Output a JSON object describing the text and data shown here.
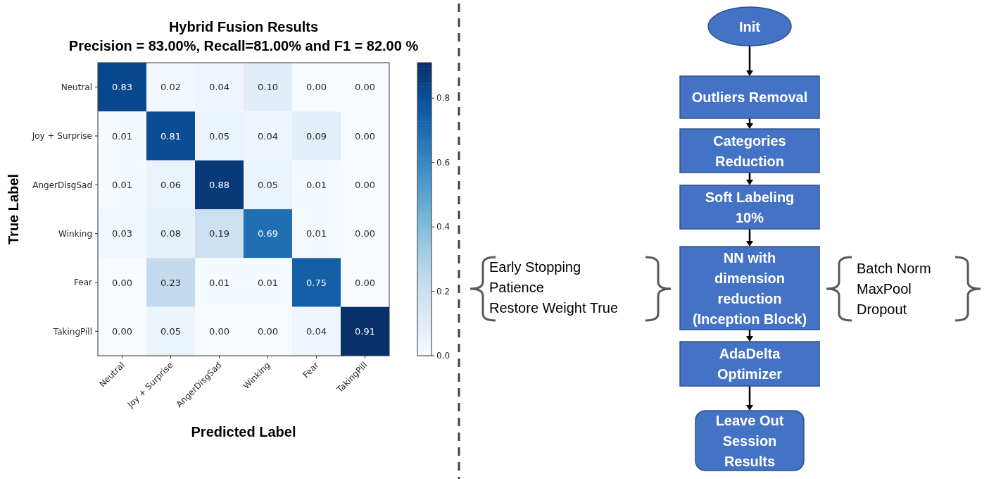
{
  "chart_data": [
    {
      "type": "heatmap",
      "title": "Hybrid Fusion Results",
      "subtitle": "Precision = 83.00%, Recall=81.00% and F1 = 82.00 %",
      "xlabel": "Predicted Label",
      "ylabel": "True Label",
      "categories": [
        "Neutral",
        "Joy + Surprise",
        "AngerDisgSad",
        "Winking",
        "Fear",
        "TakingPill"
      ],
      "y_categories": [
        "Neutral",
        "Joy + Surprise",
        "AngerDisgSad",
        "Winking",
        "Fear",
        "TakingPill"
      ],
      "cells": [
        [
          0.83,
          0.02,
          0.04,
          0.1,
          0.0,
          0.0
        ],
        [
          0.01,
          0.81,
          0.05,
          0.04,
          0.09,
          0.0
        ],
        [
          0.01,
          0.06,
          0.88,
          0.05,
          0.01,
          0.0
        ],
        [
          0.03,
          0.08,
          0.19,
          0.69,
          0.01,
          0.0
        ],
        [
          0.0,
          0.23,
          0.01,
          0.01,
          0.75,
          0.0
        ],
        [
          0.0,
          0.05,
          0.0,
          0.0,
          0.04,
          0.91
        ]
      ],
      "cell_labels": [
        [
          "0.83",
          "0.02",
          "0.04",
          "0.10",
          "0.00",
          "0.00"
        ],
        [
          "0.01",
          "0.81",
          "0.05",
          "0.04",
          "0.09",
          "0.00"
        ],
        [
          "0.01",
          "0.06",
          "0.88",
          "0.05",
          "0.01",
          "0.00"
        ],
        [
          "0.03",
          "0.08",
          "0.19",
          "0.69",
          "0.01",
          "0.00"
        ],
        [
          "0.00",
          "0.23",
          "0.01",
          "0.01",
          "0.75",
          "0.00"
        ],
        [
          "0.00",
          "0.05",
          "0.00",
          "0.00",
          "0.04",
          "0.91"
        ]
      ],
      "clim": [
        0,
        0.91
      ],
      "cticks": [
        {
          "value": 0,
          "label": "0.0"
        },
        {
          "value": 0.2,
          "label": "0.2"
        },
        {
          "value": 0.4,
          "label": "0.4"
        },
        {
          "value": 0.6,
          "label": "0.6"
        },
        {
          "value": 0.8,
          "label": "0.8"
        }
      ]
    },
    {
      "type": "other",
      "annotations": [
        "Init",
        "Outliers Removal",
        "Categories\nReduction",
        "Soft Labeling\n10%",
        "NN with\ndimension\nreduction\n(Inception Block)",
        "AdaDelta\nOptimizer",
        "Leave Out\nSession\nResults",
        "Early Stopping\nPatience\nRestore Weight True",
        "Batch Norm\nMaxPool\nDropout"
      ]
    }
  ]
}
